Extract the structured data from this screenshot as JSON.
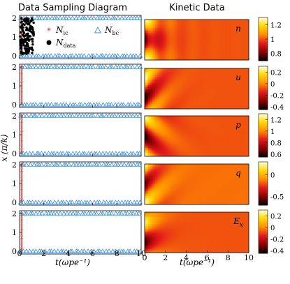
{
  "chart_data": [
    {
      "type": "scatter",
      "title": "Data Sampling Diagram",
      "ylabel": "x (π/k)",
      "xlabel": "t(ωpe⁻¹)",
      "xlim": [
        0,
        10
      ],
      "ylim": [
        0,
        2
      ],
      "x_ticks": [
        "0",
        "2",
        "4",
        "6",
        "8",
        "10"
      ],
      "y_ticks": [
        "0",
        "1",
        "2"
      ],
      "legend": [
        {
          "symbol": "*",
          "color": "#b22222",
          "label_main": "N",
          "label_sub": "ic"
        },
        {
          "symbol": "△",
          "color": "#3a8fd9",
          "label_main": "N",
          "label_sub": "bc"
        },
        {
          "symbol": "●",
          "color": "#000000",
          "label_main": "N",
          "label_sub": "data"
        }
      ],
      "series": [
        {
          "name": "N_ic",
          "x": 0,
          "y_from": 0,
          "y_to": 2,
          "count": 30
        },
        {
          "name": "N_bc",
          "y": [
            0,
            2
          ],
          "x_from": 0,
          "x_to": 10,
          "count": 40
        },
        {
          "name": "N_data",
          "x_range": [
            0.05,
            1.2
          ],
          "y_range": [
            0.1,
            2.0
          ],
          "count": 150
        }
      ],
      "panels": 5
    },
    {
      "type": "heatmap",
      "title": "Kinetic Data",
      "xlabel": "t(ωpe⁻¹)",
      "xlim": [
        0,
        10
      ],
      "x_ticks": [
        "0",
        "2",
        "4",
        "6",
        "8",
        "10"
      ],
      "colormap": [
        "#000000",
        "#8b0000",
        "#e31a1c",
        "#ff8c00",
        "#ffd700",
        "#ffffe0"
      ],
      "panels": [
        {
          "label": "n",
          "label_sub": "",
          "ticks": [
            "1.2",
            "1",
            "0.8"
          ],
          "cmin": 0.7,
          "cmax": 1.3
        },
        {
          "label": "u",
          "label_sub": "",
          "ticks": [
            "0.2",
            "0",
            "-0.2",
            "-0.4"
          ],
          "cmin": -0.45,
          "cmax": 0.3
        },
        {
          "label": "p",
          "label_sub": "",
          "ticks": [
            "1.2",
            "1",
            "0.8",
            "0.6"
          ],
          "cmin": 0.55,
          "cmax": 1.3
        },
        {
          "label": "q",
          "label_sub": "",
          "ticks": [
            "0",
            "-0.5"
          ],
          "cmin": -0.7,
          "cmax": 0.3
        },
        {
          "label": "E",
          "label_sub": "x",
          "ticks": [
            "0.2",
            "0",
            "-0.2",
            "-0.4"
          ],
          "cmin": -0.45,
          "cmax": 0.3
        }
      ]
    }
  ]
}
